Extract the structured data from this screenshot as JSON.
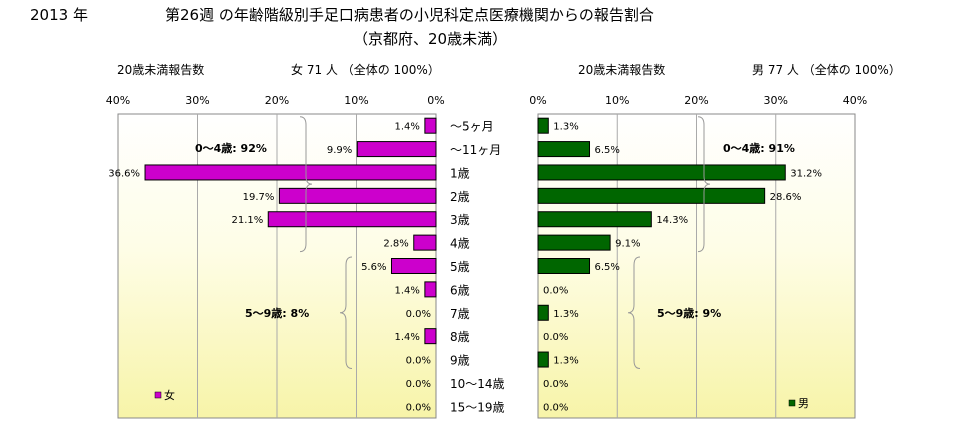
{
  "header": {
    "year": "2013 年",
    "title": "第26週 の年齢階級別手足口病患者の小児科定点医療機関からの報告割合",
    "subtitle": "（京都府、20歳未満）",
    "left_count_label": "20歳未満報告数",
    "left_summary": "女  71 人 （全体の  100%）",
    "right_count_label": "20歳未満報告数",
    "right_summary": "男  77 人 （全体の  100%）"
  },
  "colors": {
    "female": "#cc00cc",
    "male": "#006600",
    "bracket": "#999999"
  },
  "chart_data": [
    {
      "type": "bar",
      "orientation": "horizontal",
      "direction": "right-to-left",
      "series": [
        {
          "name": "女",
          "values": [
            1.4,
            9.9,
            36.6,
            19.7,
            21.1,
            2.8,
            5.6,
            1.4,
            0.0,
            1.4,
            0.0,
            0.0,
            0.0
          ]
        }
      ],
      "value_labels": [
        "1.4%",
        "9.9%",
        "36.6%",
        "19.7%",
        "21.1%",
        "2.8%",
        "5.6%",
        "1.4%",
        "0.0%",
        "1.4%",
        "0.0%",
        "0.0%",
        "0.0%"
      ],
      "xlim": [
        0,
        40
      ],
      "ticks": [
        "40%",
        "30%",
        "20%",
        "10%",
        "0%"
      ],
      "legend": "bottom-left",
      "grid": true,
      "annotations": [
        "0～4歳: 92%",
        "5～9歳:  8%"
      ]
    },
    {
      "type": "bar",
      "orientation": "horizontal",
      "direction": "left-to-right",
      "series": [
        {
          "name": "男",
          "values": [
            1.3,
            6.5,
            31.2,
            28.6,
            14.3,
            9.1,
            6.5,
            0.0,
            1.3,
            0.0,
            1.3,
            0.0,
            0.0
          ]
        }
      ],
      "value_labels": [
        "1.3%",
        "6.5%",
        "31.2%",
        "28.6%",
        "14.3%",
        "9.1%",
        "6.5%",
        "0.0%",
        "1.3%",
        "0.0%",
        "1.3%",
        "0.0%",
        "0.0%"
      ],
      "xlim": [
        0,
        40
      ],
      "ticks": [
        "0%",
        "10%",
        "20%",
        "30%",
        "40%"
      ],
      "legend": "bottom-right",
      "grid": true,
      "annotations": [
        "0～4歳: 91%",
        "5～9歳:  9%"
      ]
    }
  ],
  "categories": [
    "～5ヶ月",
    "～11ヶ月",
    "1歳",
    "2歳",
    "3歳",
    "4歳",
    "5歳",
    "6歳",
    "7歳",
    "8歳",
    "9歳",
    "10～14歳",
    "15～19歳"
  ]
}
